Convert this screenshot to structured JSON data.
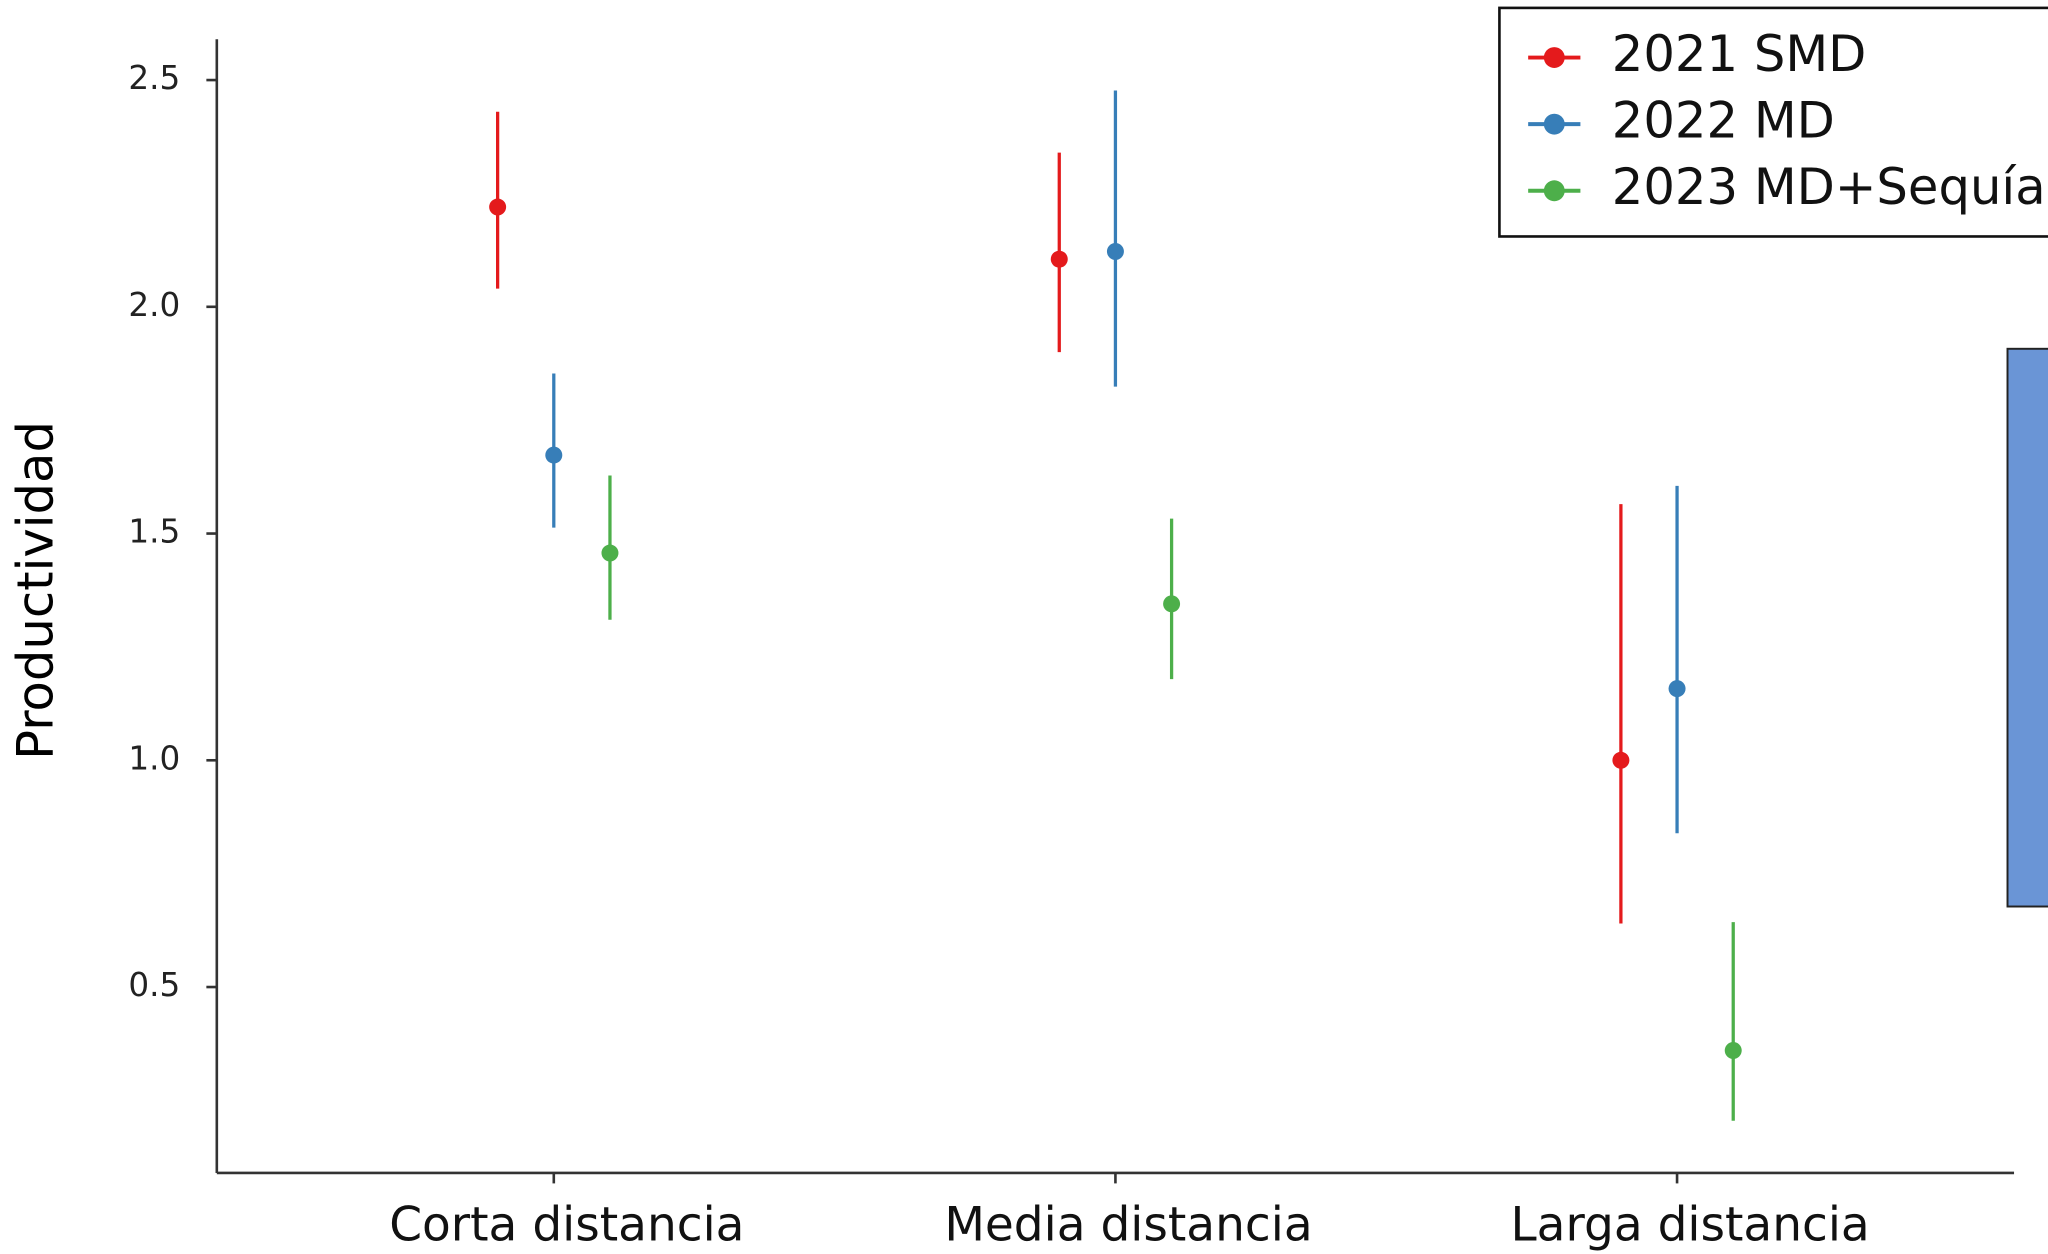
{
  "chart_data": {
    "type": "pointrange",
    "y_label": "Productividad",
    "categories": [
      "Corta distancia",
      "Media distancia",
      "Larga distancia"
    ],
    "ylim": [
      0.09,
      2.59
    ],
    "yticks": [
      {
        "value": 0.5,
        "label": "0.5"
      },
      {
        "value": 1,
        "label": "1.0"
      },
      {
        "value": 1.5,
        "label": "1.5"
      },
      {
        "value": 2,
        "label": "2.0"
      },
      {
        "value": 2.5,
        "label": "2.5"
      }
    ],
    "legend": "top-right",
    "series": [
      {
        "name": "2021 SMD",
        "color": "#e41a1c",
        "values": [
          2.22,
          2.105,
          1.0
        ],
        "lower": [
          2.04,
          1.9,
          0.64
        ],
        "upper": [
          2.43,
          2.34,
          1.565
        ]
      },
      {
        "name": "2022 MD",
        "color": "#377eb8",
        "values": [
          1.673,
          2.122,
          1.158
        ],
        "lower": [
          1.513,
          1.824,
          0.839
        ],
        "upper": [
          1.853,
          2.477,
          1.605
        ]
      },
      {
        "name": "2023 MD+Sequía",
        "color": "#4daf4a",
        "values": [
          1.457,
          1.345,
          0.36
        ],
        "lower": [
          1.31,
          1.179,
          0.205
        ],
        "upper": [
          1.628,
          1.533,
          0.643
        ]
      }
    ]
  }
}
